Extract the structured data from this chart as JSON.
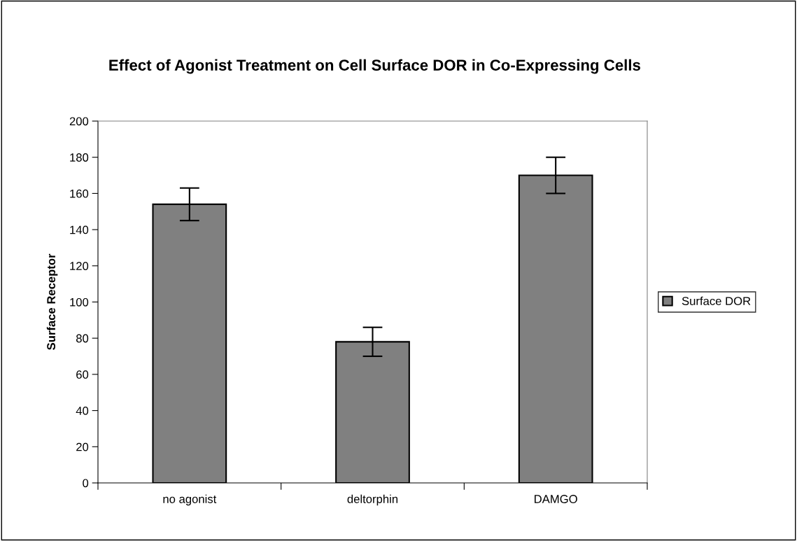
{
  "chart_data": {
    "type": "bar",
    "title": "Effect of Agonist Treatment on Cell Surface DOR in Co-Expressing Cells",
    "ylabel": "Surface Receptor",
    "categories": [
      "no agonist",
      "deltorphin",
      "DAMGO"
    ],
    "series": [
      {
        "name": "Surface DOR",
        "color": "#808080",
        "values": [
          154,
          78,
          170
        ],
        "errors": [
          9,
          8,
          10
        ]
      }
    ],
    "ylim": [
      0,
      200
    ],
    "yticks": [
      0,
      20,
      40,
      60,
      80,
      100,
      120,
      140,
      160,
      180,
      200
    ],
    "grid": false,
    "legend": "right"
  }
}
